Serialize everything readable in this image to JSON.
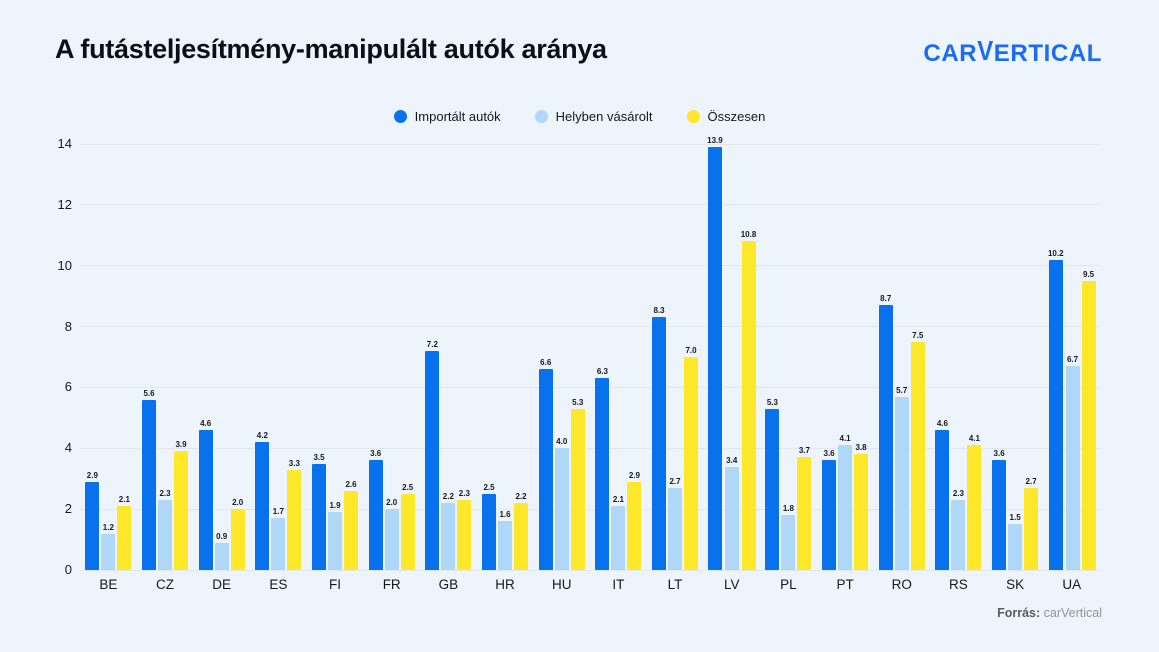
{
  "page": {
    "title": "A futásteljesítmény-manipulált autók aránya",
    "logo": {
      "pre": "CAR",
      "v": "V",
      "post": "ERTICAL"
    },
    "footer": {
      "label": "Forrás:",
      "value": "carVertical"
    }
  },
  "colors": {
    "background": "#edf4fc",
    "imported": "#0872ee",
    "local": "#aed7f8",
    "total": "#ffe72a",
    "grid": "#e0e7ef",
    "logo_blue": "#1c6cf3",
    "text_dark": "#16181d"
  },
  "chart_data": {
    "type": "bar",
    "title": "A futásteljesítmény-manipulált autók aránya",
    "categories": [
      "BE",
      "CZ",
      "DE",
      "ES",
      "FI",
      "FR",
      "GB",
      "HR",
      "HU",
      "IT",
      "LT",
      "LV",
      "PL",
      "PT",
      "RO",
      "RS",
      "SK",
      "UA"
    ],
    "series": [
      {
        "name": "Importált autók",
        "color_key": "imported",
        "values": [
          2.9,
          5.6,
          4.6,
          4.2,
          3.5,
          3.6,
          7.2,
          2.5,
          6.6,
          6.3,
          8.3,
          13.9,
          5.3,
          3.6,
          8.7,
          4.6,
          3.6,
          10.2
        ]
      },
      {
        "name": "Helyben vásárolt",
        "color_key": "local",
        "values": [
          1.2,
          2.3,
          0.9,
          1.7,
          1.9,
          2.0,
          2.2,
          1.6,
          4.0,
          2.1,
          2.7,
          3.4,
          1.8,
          4.1,
          5.7,
          2.3,
          1.5,
          6.7
        ]
      },
      {
        "name": "Összesen",
        "color_key": "total",
        "values": [
          2.1,
          3.9,
          2.0,
          3.3,
          2.6,
          2.5,
          2.3,
          2.2,
          5.3,
          2.9,
          7.0,
          10.8,
          3.7,
          3.8,
          7.5,
          4.1,
          2.7,
          9.5
        ]
      }
    ],
    "xlabel": "",
    "ylabel": "",
    "ylim": [
      0,
      14
    ],
    "yticks": [
      0,
      2,
      4,
      6,
      8,
      10,
      12,
      14
    ],
    "grid": true,
    "legend_position": "top",
    "value_labels": true
  }
}
